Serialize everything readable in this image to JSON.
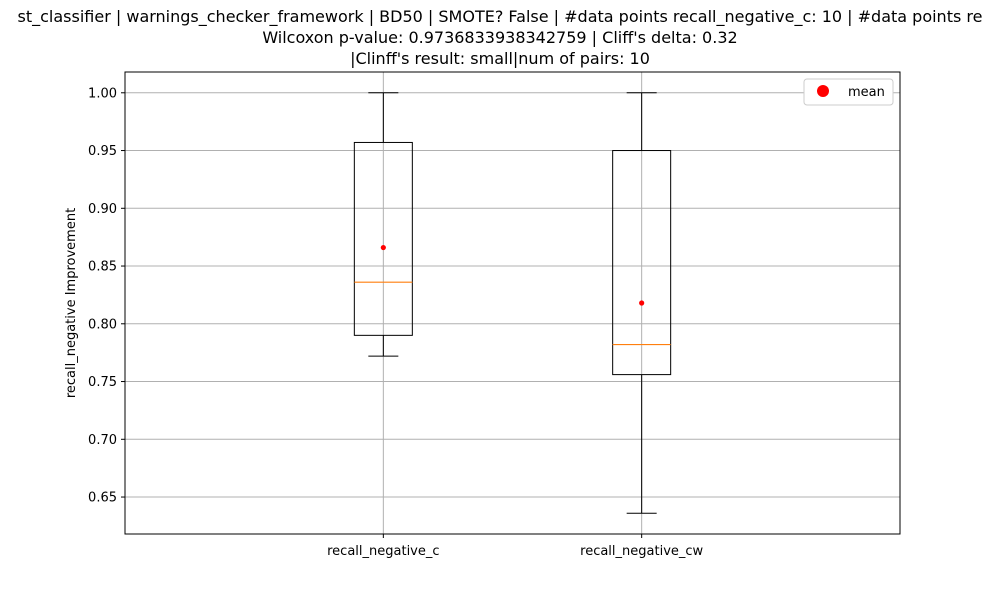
{
  "chart_data": {
    "type": "box",
    "title_lines": [
      "st_classifier | warnings_checker_framework | BD50 | SMOTE? False | #data points recall_negative_c: 10 | #data points re",
      "Wilcoxon p-value: 0.9736833938342759 | Cliff's delta: 0.32",
      "|Clinff's result: small|num of pairs: 10"
    ],
    "xlabel": "",
    "ylabel": "recall_negative Improvement",
    "ylim": [
      0.618,
      1.018
    ],
    "yticks": [
      0.65,
      0.7,
      0.75,
      0.8,
      0.85,
      0.9,
      0.95,
      1.0
    ],
    "ytick_labels": [
      "0.65",
      "0.70",
      "0.75",
      "0.80",
      "0.85",
      "0.90",
      "0.95",
      "1.00"
    ],
    "grid": true,
    "legend": {
      "position": "top-right",
      "entries": [
        "mean"
      ]
    },
    "categories": [
      "recall_negative_c",
      "recall_negative_cw"
    ],
    "boxes": [
      {
        "name": "recall_negative_c",
        "whisker_low": 0.772,
        "q1": 0.79,
        "median": 0.836,
        "q3": 0.957,
        "whisker_high": 1.0,
        "mean": 0.866
      },
      {
        "name": "recall_negative_cw",
        "whisker_low": 0.636,
        "q1": 0.756,
        "median": 0.782,
        "q3": 0.95,
        "whisker_high": 1.0,
        "mean": 0.818
      }
    ],
    "colors": {
      "box": "#000000",
      "median": "#ff7f0e",
      "mean": "#ff0000",
      "grid": "#b0b0b0"
    }
  }
}
